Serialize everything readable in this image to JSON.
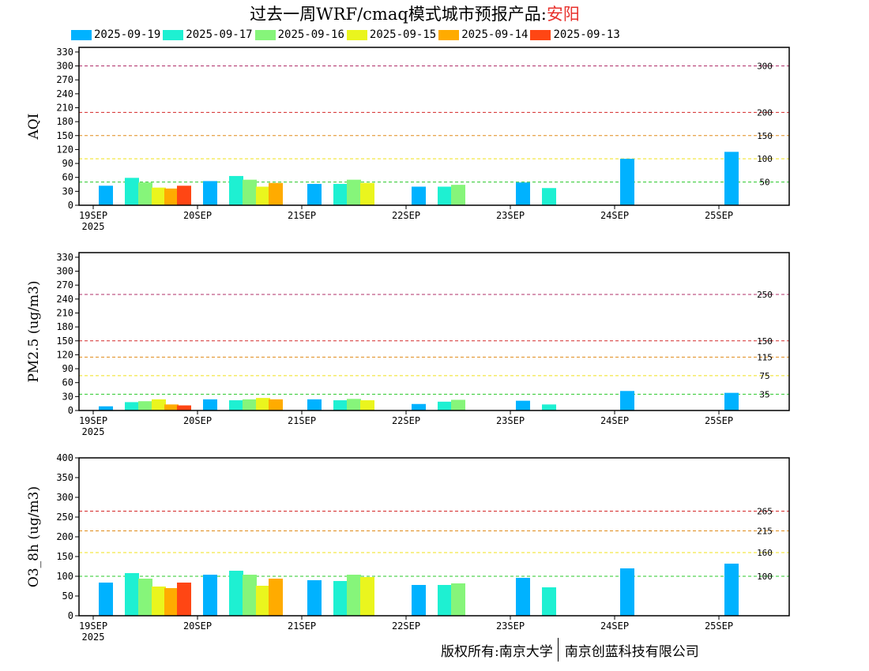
{
  "title": {
    "prefix": "过去一周WRF/cmaq模式城市预报产品:",
    "city": "安阳"
  },
  "legend": [
    {
      "label": "2025-09-19",
      "color": "#00b2ff"
    },
    {
      "label": "2025-09-17",
      "color": "#1ef0d2"
    },
    {
      "label": "2025-09-16",
      "color": "#86f57a"
    },
    {
      "label": "2025-09-15",
      "color": "#eaf51e"
    },
    {
      "label": "2025-09-14",
      "color": "#ffab00"
    },
    {
      "label": "2025-09-13",
      "color": "#ff4614"
    }
  ],
  "footer": {
    "left": "版权所有:南京大学",
    "right": "南京创蓝科技有限公司"
  },
  "chart_data": [
    {
      "type": "bar",
      "ylabel": "AQI",
      "ylim": [
        0,
        340
      ],
      "yticks": [
        0,
        30,
        60,
        90,
        120,
        150,
        180,
        210,
        240,
        270,
        300,
        330
      ],
      "categories": [
        "19SEP",
        "20SEP",
        "21SEP",
        "22SEP",
        "23SEP",
        "24SEP",
        "25SEP"
      ],
      "year_label": "2025",
      "thresholds": [
        {
          "value": 300,
          "label": "300",
          "color": "#b0306a"
        },
        {
          "value": 200,
          "label": "200",
          "color": "#d42828"
        },
        {
          "value": 150,
          "label": "150",
          "color": "#e08a18"
        },
        {
          "value": 100,
          "label": "100",
          "color": "#f0e01a"
        },
        {
          "value": 50,
          "label": "50",
          "color": "#28c828"
        }
      ],
      "series": [
        {
          "name": "2025-09-19",
          "values": [
            42,
            52,
            46,
            40,
            49,
            100,
            115
          ]
        },
        {
          "name": "2025-09-17",
          "values": [
            59,
            63,
            46,
            40,
            37,
            null,
            null
          ]
        },
        {
          "name": "2025-09-16",
          "values": [
            49,
            55,
            55,
            44,
            null,
            null,
            null
          ]
        },
        {
          "name": "2025-09-15",
          "values": [
            38,
            40,
            48,
            null,
            null,
            null,
            null
          ]
        },
        {
          "name": "2025-09-14",
          "values": [
            36,
            48,
            null,
            null,
            null,
            null,
            null
          ]
        },
        {
          "name": "2025-09-13",
          "values": [
            42,
            null,
            null,
            null,
            null,
            null,
            null
          ]
        }
      ]
    },
    {
      "type": "bar",
      "ylabel": "PM2.5 (ug/m3)",
      "ylim": [
        0,
        340
      ],
      "yticks": [
        0,
        30,
        60,
        90,
        120,
        150,
        180,
        210,
        240,
        270,
        300,
        330
      ],
      "categories": [
        "19SEP",
        "20SEP",
        "21SEP",
        "22SEP",
        "23SEP",
        "24SEP",
        "25SEP"
      ],
      "year_label": "2025",
      "thresholds": [
        {
          "value": 250,
          "label": "250",
          "color": "#b0306a"
        },
        {
          "value": 150,
          "label": "150",
          "color": "#d42828"
        },
        {
          "value": 115,
          "label": "115",
          "color": "#e08a18"
        },
        {
          "value": 75,
          "label": "75",
          "color": "#f0e01a"
        },
        {
          "value": 35,
          "label": "35",
          "color": "#28c828"
        }
      ],
      "series": [
        {
          "name": "2025-09-19",
          "values": [
            9,
            24,
            24,
            14,
            21,
            42,
            38
          ]
        },
        {
          "name": "2025-09-17",
          "values": [
            18,
            22,
            22,
            19,
            13,
            null,
            null
          ]
        },
        {
          "name": "2025-09-16",
          "values": [
            20,
            24,
            25,
            23,
            null,
            null,
            null
          ]
        },
        {
          "name": "2025-09-15",
          "values": [
            24,
            27,
            22,
            null,
            null,
            null,
            null
          ]
        },
        {
          "name": "2025-09-14",
          "values": [
            13,
            24,
            null,
            null,
            null,
            null,
            null
          ]
        },
        {
          "name": "2025-09-13",
          "values": [
            11,
            null,
            null,
            null,
            null,
            null,
            null
          ]
        }
      ]
    },
    {
      "type": "bar",
      "ylabel": "O3_8h (ug/m3)",
      "ylim": [
        0,
        400
      ],
      "yticks": [
        0,
        50,
        100,
        150,
        200,
        250,
        300,
        350,
        400
      ],
      "categories": [
        "19SEP",
        "20SEP",
        "21SEP",
        "22SEP",
        "23SEP",
        "24SEP",
        "25SEP"
      ],
      "year_label": "2025",
      "thresholds": [
        {
          "value": 265,
          "label": "265",
          "color": "#d42828"
        },
        {
          "value": 215,
          "label": "215",
          "color": "#e08a18"
        },
        {
          "value": 160,
          "label": "160",
          "color": "#f0e01a"
        },
        {
          "value": 100,
          "label": "100",
          "color": "#28c828"
        }
      ],
      "series": [
        {
          "name": "2025-09-19",
          "values": [
            84,
            104,
            90,
            78,
            96,
            120,
            132
          ]
        },
        {
          "name": "2025-09-17",
          "values": [
            108,
            114,
            88,
            78,
            72,
            null,
            null
          ]
        },
        {
          "name": "2025-09-16",
          "values": [
            94,
            104,
            104,
            82,
            null,
            null,
            null
          ]
        },
        {
          "name": "2025-09-15",
          "values": [
            74,
            76,
            98,
            null,
            null,
            null,
            null
          ]
        },
        {
          "name": "2025-09-14",
          "values": [
            70,
            94,
            null,
            null,
            null,
            null,
            null
          ]
        },
        {
          "name": "2025-09-13",
          "values": [
            84,
            null,
            null,
            null,
            null,
            null,
            null
          ]
        }
      ]
    }
  ]
}
